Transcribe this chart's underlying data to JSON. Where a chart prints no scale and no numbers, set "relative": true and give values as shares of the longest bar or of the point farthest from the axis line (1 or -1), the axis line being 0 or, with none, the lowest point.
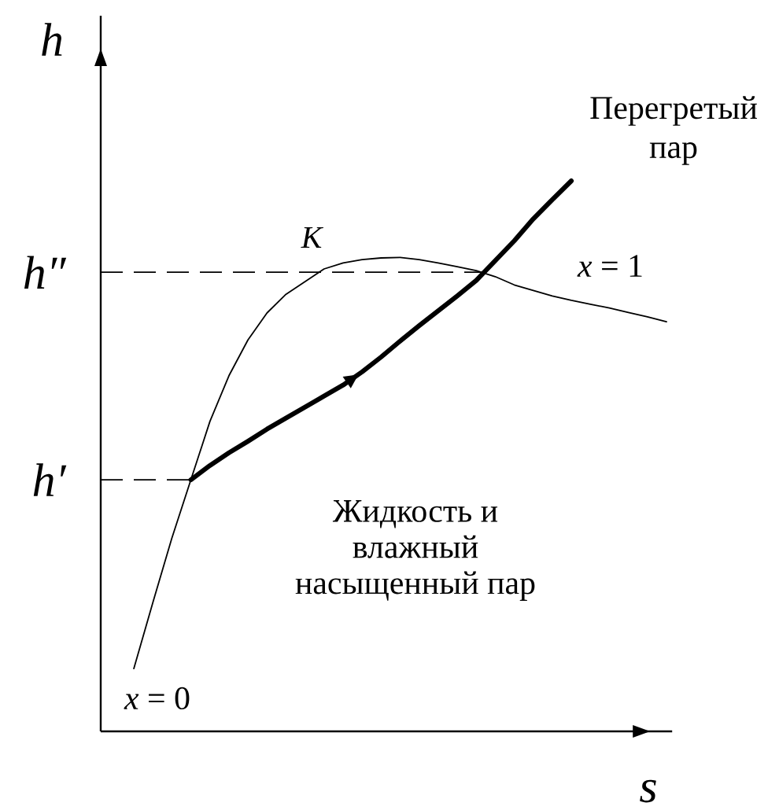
{
  "chart_data": {
    "type": "line",
    "relative": true,
    "xlabel": "s",
    "ylabel": "h",
    "marker": "none",
    "line_style": "solid",
    "categories": [
      null,
      null,
      null,
      null,
      null,
      null,
      null,
      null,
      null,
      null,
      null,
      null,
      null,
      null,
      null,
      null,
      null,
      null,
      null,
      null,
      null,
      null,
      null,
      null,
      null,
      null,
      null,
      null,
      null
    ],
    "series": [
      {
        "color": "#000000",
        "values": [
          0.114,
          0.234,
          0.351,
          0.457,
          0.563,
          0.646,
          0.711,
          0.76,
          0.794,
          0.817,
          0.84,
          0.851,
          0.857,
          0.86,
          0.861,
          0.857,
          0.851,
          0.844,
          0.837,
          0.826,
          0.811,
          0.801,
          0.791,
          0.783,
          0.776,
          0.769,
          0.761,
          0.753,
          0.744
        ]
      },
      {
        "color": "#000000",
        "values": [
          null,
          null,
          null,
          0.457,
          0.483,
          0.506,
          0.527,
          0.549,
          0.569,
          0.589,
          0.609,
          0.629,
          0.653,
          0.68,
          0.709,
          0.737,
          0.764,
          0.791,
          0.819,
          0.855,
          0.891,
          0.931,
          0.966,
          1.0,
          null,
          null,
          null,
          null,
          null
        ]
      }
    ],
    "ref_lines": [
      {
        "axis": "y",
        "value": 0.834,
        "label": "h″",
        "line_style": "dashed",
        "color": "#000000"
      },
      {
        "axis": "y",
        "value": 0.457,
        "label": "h′",
        "line_style": "dashed",
        "color": "#000000"
      }
    ],
    "annotations": [
      "K",
      "*x* = 0",
      "*x* = 1",
      "Перегретый пар",
      "Жидкость и влажный насыщенный пар"
    ]
  }
}
